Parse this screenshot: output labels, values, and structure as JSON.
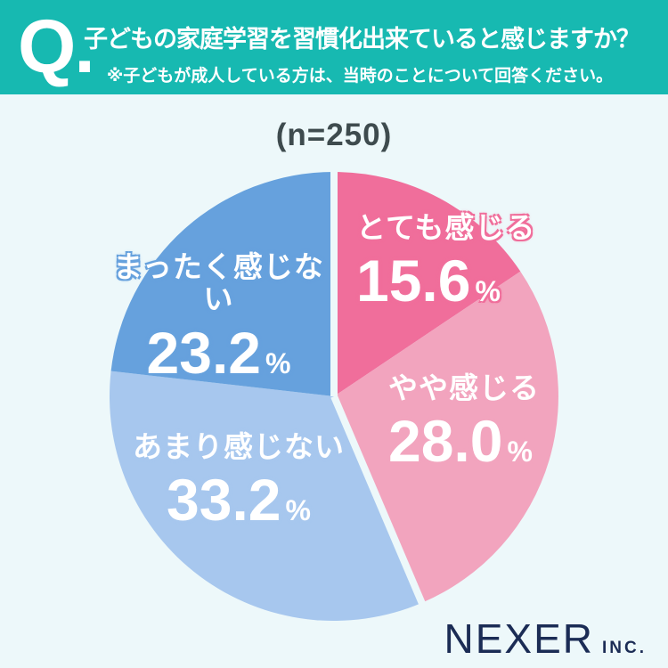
{
  "header": {
    "q_mark": "Q.",
    "title": "子どもの家庭学習を習慣化出来ていると感じますか？",
    "subtitle": "※子どもが成人している方は、当時のことについて回答ください。"
  },
  "sample_size": "(n=250)",
  "chart_data": {
    "type": "pie",
    "title": "子どもの家庭学習を習慣化出来ていると感じますか？",
    "sample_note": "(n=250)",
    "categories": [
      "とても感じる",
      "やや感じる",
      "あまり感じない",
      "まったく感じない"
    ],
    "values": [
      15.6,
      28.0,
      33.2,
      23.2
    ],
    "value_labels": [
      "15.6",
      "28.0",
      "33.2",
      "23.2"
    ],
    "unit": "%",
    "colors": [
      "#F06E9B",
      "#F2A4BE",
      "#A7C7EE",
      "#66A1DD"
    ],
    "start_angle_deg": 0,
    "direction": "clockwise",
    "legend_position": "on-slices",
    "divider_before_slices": [
      0,
      2
    ],
    "divider_color": "#EDF8FA"
  },
  "logo": {
    "name": "NEXER",
    "suffix": "INC."
  },
  "colors": {
    "header_background": "#17B9B1",
    "page_background": "#EDF8FA",
    "sample_text": "#3E4B4E",
    "logo_text": "#1B2C55",
    "label_text": "#FFFFFF"
  }
}
